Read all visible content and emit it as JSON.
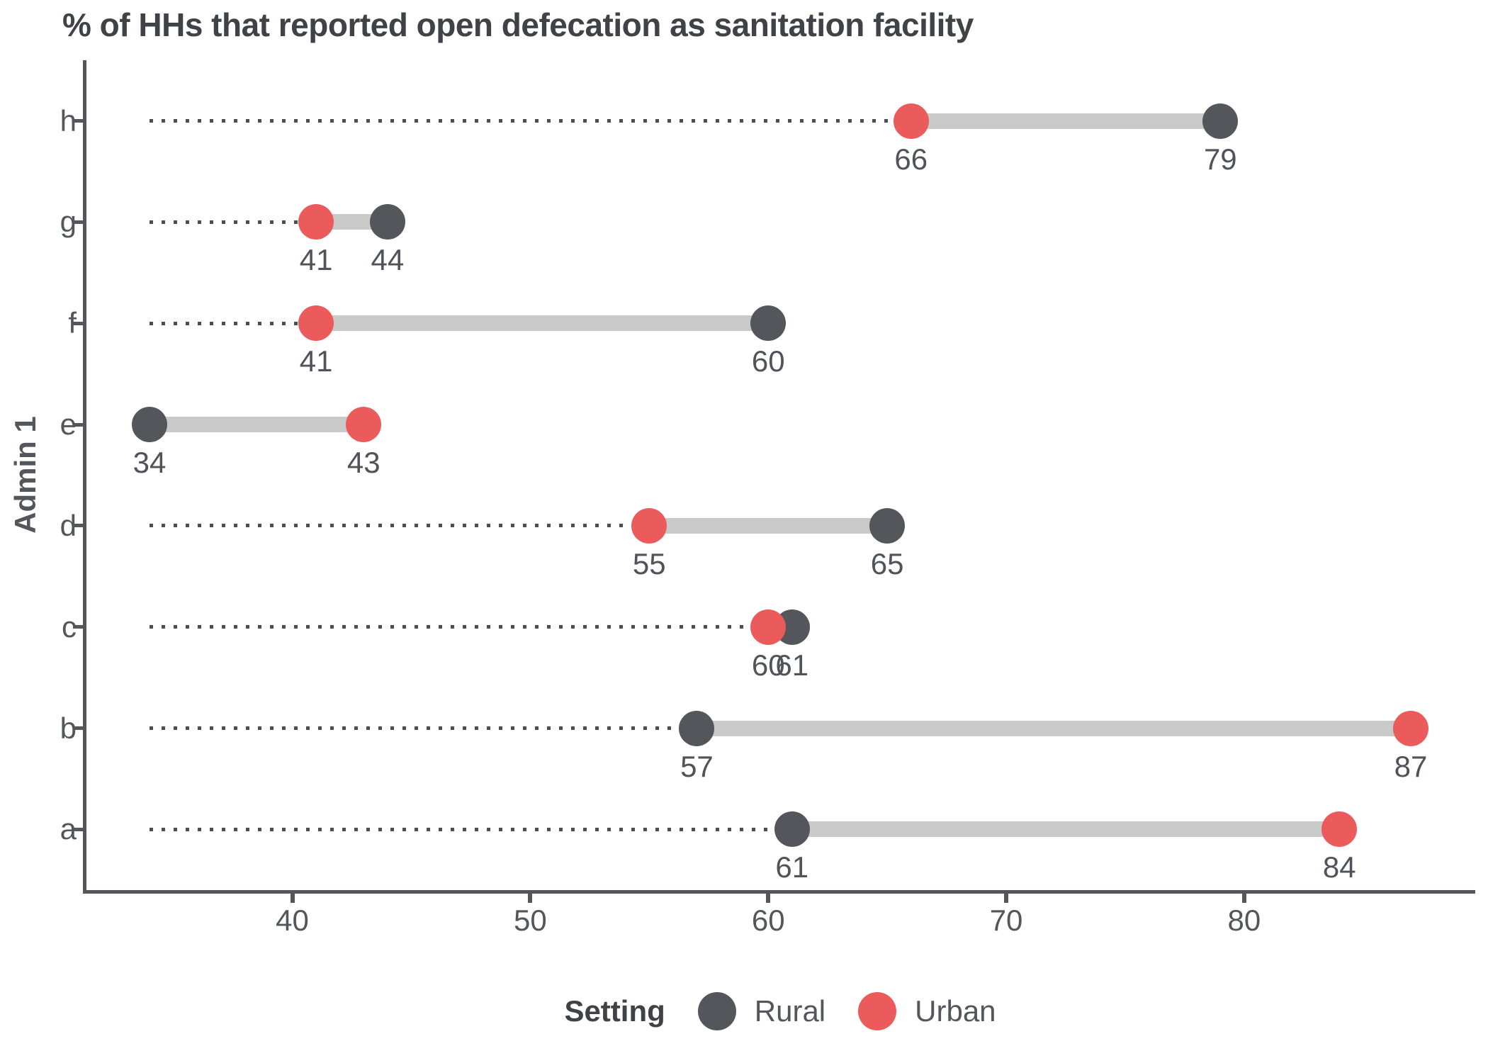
{
  "chart_data": {
    "type": "dumbbell",
    "title": "% of HHs that reported open defecation as sanitation facility",
    "xlabel": "",
    "ylabel": "Admin 1",
    "categories": [
      "h",
      "g",
      "f",
      "e",
      "d",
      "c",
      "b",
      "a"
    ],
    "series": [
      {
        "name": "Rural",
        "values": [
          79,
          44,
          60,
          34,
          65,
          61,
          57,
          61
        ]
      },
      {
        "name": "Urban",
        "values": [
          66,
          41,
          41,
          43,
          55,
          60,
          87,
          84
        ]
      }
    ],
    "x_ticks": [
      40,
      50,
      60,
      70,
      80
    ],
    "xlim": [
      31.35,
      89.65
    ],
    "leader_origin": 34,
    "grid": false,
    "legend": {
      "title": "Setting",
      "position": "bottom",
      "entries": [
        "Rural",
        "Urban"
      ]
    }
  },
  "palette": {
    "rural": "#54565B",
    "urban": "#EC5B5B",
    "range_bar": "#C9C9C9",
    "leader_dots": "#4B4E52",
    "axis": "#53565A",
    "tick_text": "#53565A",
    "value_text": "#50535A",
    "title_text": "#3F4347",
    "background": "#FFFFFF"
  }
}
